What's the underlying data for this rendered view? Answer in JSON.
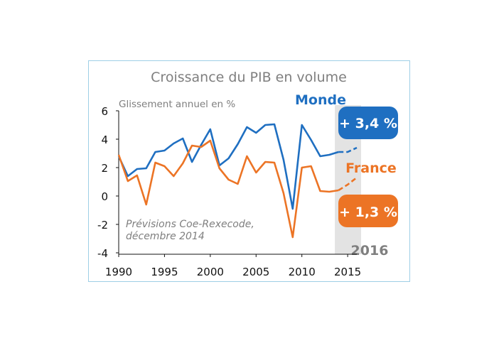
{
  "chart_data": {
    "type": "line",
    "title": "Croissance du PIB en volume",
    "ylabel": "Glissement annuel en %",
    "xlim": [
      1990,
      2016
    ],
    "ylim": [
      -4,
      6
    ],
    "y_ticks": [
      "6",
      "4",
      "2",
      "0",
      "-2",
      "-4"
    ],
    "x_ticks": [
      "1990",
      "1995",
      "2000",
      "2005",
      "2010",
      "2015"
    ],
    "forecast_start": 2013.6,
    "forecast_label": "2016",
    "note_lines": [
      "Prévisions Coe-Rexecode,",
      "décembre 2014"
    ],
    "series": [
      {
        "name": "Monde",
        "color": "#1f6fc1",
        "badge": "+ 3,4 %",
        "x": [
          1990,
          1991,
          1992,
          1993,
          1994,
          1995,
          1996,
          1997,
          1998,
          1999,
          2000,
          2001,
          2002,
          2003,
          2004,
          2005,
          2006,
          2007,
          2008,
          2009,
          2010,
          2011,
          2012,
          2013,
          2014
        ],
        "values": [
          2.8,
          1.4,
          1.9,
          1.95,
          3.1,
          3.2,
          3.7,
          4.05,
          2.4,
          3.6,
          4.7,
          2.15,
          2.65,
          3.65,
          4.85,
          4.45,
          5.0,
          5.05,
          2.55,
          -0.9,
          5.0,
          3.95,
          2.8,
          2.9,
          3.1
        ],
        "forecast_x": [
          2014,
          2015,
          2016
        ],
        "forecast_values": [
          3.1,
          3.1,
          3.4
        ]
      },
      {
        "name": "France",
        "color": "#ec7425",
        "badge": "+ 1,3 %",
        "x": [
          1990,
          1991,
          1992,
          1993,
          1994,
          1995,
          1996,
          1997,
          1998,
          1999,
          2000,
          2001,
          2002,
          2003,
          2004,
          2005,
          2006,
          2007,
          2008,
          2009,
          2010,
          2011,
          2012,
          2013,
          2014
        ],
        "values": [
          2.9,
          1.05,
          1.45,
          -0.6,
          2.35,
          2.1,
          1.4,
          2.3,
          3.55,
          3.45,
          3.9,
          1.95,
          1.15,
          0.85,
          2.8,
          1.65,
          2.4,
          2.35,
          0.2,
          -2.9,
          2.0,
          2.1,
          0.35,
          0.3,
          0.4
        ],
        "forecast_x": [
          2014,
          2015,
          2016
        ],
        "forecast_values": [
          0.4,
          0.8,
          1.3
        ]
      }
    ]
  }
}
